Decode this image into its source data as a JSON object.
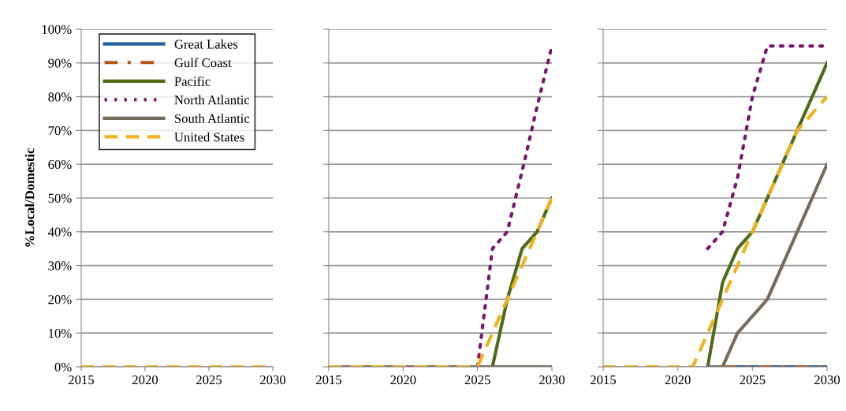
{
  "chart_data": [
    {
      "type": "line",
      "ylabel": "%Local/Domestic",
      "x": [
        2015,
        2016,
        2017,
        2018,
        2019,
        2020,
        2021,
        2022,
        2023,
        2024,
        2025,
        2026,
        2027,
        2028,
        2029,
        2030
      ],
      "xlim": [
        2015,
        2030
      ],
      "xticks": [
        2015,
        2020,
        2025,
        2030
      ],
      "ylim": [
        0,
        100
      ],
      "yticks": [
        {
          "value": 0,
          "label": "0%"
        },
        {
          "value": 10,
          "label": "10%"
        },
        {
          "value": 20,
          "label": "20%"
        },
        {
          "value": 30,
          "label": "30%"
        },
        {
          "value": 40,
          "label": "40%"
        },
        {
          "value": 50,
          "label": "50%"
        },
        {
          "value": 60,
          "label": "60%"
        },
        {
          "value": 70,
          "label": "70%"
        },
        {
          "value": 80,
          "label": "80%"
        },
        {
          "value": 90,
          "label": "90%"
        },
        {
          "value": 100,
          "label": "100%"
        }
      ],
      "grid": "y",
      "legend": "top left",
      "marker": "none",
      "series": [
        {
          "name": "Great Lakes",
          "color": "#1f5fa0",
          "line_style": "solid",
          "values": [
            null,
            null,
            null,
            null,
            null,
            null,
            null,
            null,
            null,
            null,
            null,
            null,
            null,
            null,
            null,
            null
          ]
        },
        {
          "name": "Gulf Coast",
          "color": "#b5561a",
          "line_style": "dashdot",
          "values": [
            null,
            null,
            null,
            null,
            null,
            null,
            null,
            null,
            null,
            null,
            null,
            null,
            null,
            null,
            null,
            null
          ]
        },
        {
          "name": "Pacific",
          "color": "#4f6b19",
          "line_style": "solid",
          "values": [
            null,
            null,
            null,
            null,
            null,
            null,
            null,
            null,
            null,
            null,
            null,
            null,
            null,
            null,
            null,
            null
          ]
        },
        {
          "name": "North Atlantic",
          "color": "#7b1570",
          "line_style": "dotted",
          "values": [
            null,
            null,
            null,
            null,
            null,
            null,
            null,
            null,
            null,
            null,
            null,
            null,
            null,
            null,
            null,
            null
          ]
        },
        {
          "name": "South Atlantic",
          "color": "#776b5d",
          "line_style": "solid",
          "values": [
            null,
            null,
            null,
            null,
            null,
            null,
            null,
            null,
            null,
            null,
            null,
            null,
            null,
            null,
            null,
            null
          ]
        },
        {
          "name": "United States",
          "color": "#f0b21a",
          "line_style": "dashed",
          "values": [
            0,
            0,
            0,
            0,
            0,
            0,
            0,
            0,
            0,
            0,
            0,
            0,
            0,
            0,
            0,
            0
          ]
        }
      ]
    },
    {
      "type": "line",
      "x": [
        2015,
        2016,
        2017,
        2018,
        2019,
        2020,
        2021,
        2022,
        2023,
        2024,
        2025,
        2026,
        2027,
        2028,
        2029,
        2030
      ],
      "xlim": [
        2015,
        2030
      ],
      "xticks": [
        2015,
        2020,
        2025,
        2030
      ],
      "ylim": [
        0,
        100
      ],
      "yticks": [
        {
          "value": 0,
          "label": null
        },
        {
          "value": 10,
          "label": null
        },
        {
          "value": 20,
          "label": null
        },
        {
          "value": 30,
          "label": null
        },
        {
          "value": 40,
          "label": null
        },
        {
          "value": 50,
          "label": null
        },
        {
          "value": 60,
          "label": null
        },
        {
          "value": 70,
          "label": null
        },
        {
          "value": 80,
          "label": null
        },
        {
          "value": 90,
          "label": null
        },
        {
          "value": 100,
          "label": null
        }
      ],
      "tick_labels": "x",
      "grid": "y",
      "marker": "none",
      "series": [
        {
          "color": "#1f5fa0",
          "line_style": "solid",
          "values": [
            null,
            null,
            null,
            null,
            null,
            null,
            null,
            null,
            null,
            null,
            null,
            null,
            null,
            null,
            null,
            null
          ]
        },
        {
          "color": "#b5561a",
          "line_style": "dashdot",
          "values": [
            null,
            null,
            null,
            null,
            null,
            null,
            null,
            null,
            null,
            null,
            null,
            null,
            null,
            null,
            null,
            null
          ]
        },
        {
          "color": "#4f6b19",
          "line_style": "solid",
          "values": [
            null,
            null,
            null,
            null,
            null,
            null,
            null,
            null,
            null,
            null,
            null,
            0,
            20,
            35,
            40,
            50
          ]
        },
        {
          "color": "#7b1570",
          "line_style": "dotted",
          "values": [
            null,
            null,
            null,
            null,
            null,
            null,
            null,
            null,
            null,
            null,
            0,
            35,
            40,
            58,
            77,
            95
          ]
        },
        {
          "color": "#776b5d",
          "line_style": "solid",
          "values": [
            0,
            0,
            0,
            0,
            0,
            0,
            0,
            0,
            0,
            0,
            0,
            0,
            0,
            0,
            0,
            0
          ]
        },
        {
          "color": "#f0b21a",
          "line_style": "dashed",
          "values": [
            0,
            0,
            0,
            0,
            0,
            0,
            0,
            0,
            0,
            0,
            0,
            10,
            20,
            30,
            40,
            50
          ]
        }
      ]
    },
    {
      "type": "line",
      "x": [
        2015,
        2016,
        2017,
        2018,
        2019,
        2020,
        2021,
        2022,
        2023,
        2024,
        2025,
        2026,
        2027,
        2028,
        2029,
        2030
      ],
      "xlim": [
        2015,
        2030
      ],
      "xticks": [
        2015,
        2020,
        2025,
        2030
      ],
      "ylim": [
        0,
        100
      ],
      "yticks": [
        {
          "value": 0,
          "label": null
        },
        {
          "value": 10,
          "label": null
        },
        {
          "value": 20,
          "label": null
        },
        {
          "value": 30,
          "label": null
        },
        {
          "value": 40,
          "label": null
        },
        {
          "value": 50,
          "label": null
        },
        {
          "value": 60,
          "label": null
        },
        {
          "value": 70,
          "label": null
        },
        {
          "value": 80,
          "label": null
        },
        {
          "value": 90,
          "label": null
        },
        {
          "value": 100,
          "label": null
        }
      ],
      "tick_labels": "x",
      "grid": "y",
      "marker": "none",
      "series": [
        {
          "color": "#1f5fa0",
          "line_style": "solid",
          "values": [
            null,
            null,
            null,
            null,
            null,
            null,
            null,
            null,
            0,
            0,
            0,
            0,
            0,
            0,
            0,
            0
          ]
        },
        {
          "color": "#b5561a",
          "line_style": "dashdot",
          "values": [
            null,
            null,
            null,
            null,
            null,
            null,
            null,
            null,
            0,
            0,
            0,
            0,
            0,
            0,
            0,
            0
          ]
        },
        {
          "color": "#4f6b19",
          "line_style": "solid",
          "values": [
            null,
            null,
            null,
            null,
            null,
            null,
            null,
            0,
            25,
            35,
            40,
            50,
            60,
            70,
            80,
            90
          ]
        },
        {
          "color": "#7b1570",
          "line_style": "dotted",
          "values": [
            null,
            null,
            null,
            null,
            null,
            null,
            null,
            35,
            40,
            56,
            80,
            95,
            95,
            95,
            95,
            95
          ]
        },
        {
          "color": "#776b5d",
          "line_style": "solid",
          "values": [
            null,
            null,
            null,
            null,
            null,
            null,
            null,
            0,
            0,
            10,
            15,
            20,
            30,
            40,
            50,
            60
          ]
        },
        {
          "color": "#f0b21a",
          "line_style": "dashed",
          "values": [
            0,
            0,
            0,
            0,
            0,
            0,
            0,
            10,
            20,
            30,
            40,
            50,
            60,
            70,
            75,
            80
          ]
        }
      ]
    }
  ]
}
